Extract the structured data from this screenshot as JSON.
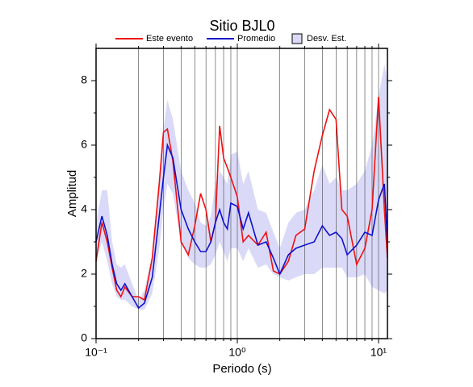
{
  "chart_data": {
    "type": "line",
    "title": "Sitio BJL0",
    "x_label": "Periodo (s)",
    "y_label": "Amplitud",
    "x_log": true,
    "xgrid": true,
    "xlim": [
      0.1,
      11.56
    ],
    "ylim": [
      0,
      9
    ],
    "xticks": [
      {
        "value": 0.1,
        "label": "10⁻¹"
      },
      {
        "value": 1,
        "label": "10⁰"
      },
      {
        "value": 10,
        "label": "10¹"
      }
    ],
    "xminorticks": [
      0.2,
      0.3,
      0.4,
      0.5,
      0.6,
      0.7,
      0.8,
      0.9,
      2,
      3,
      4,
      5,
      6,
      7,
      8,
      9
    ],
    "yticks": [
      0,
      2,
      4,
      6,
      8
    ],
    "yminorticks": [
      1,
      3,
      5,
      7
    ],
    "x": [
      0.1,
      0.11,
      0.12,
      0.13,
      0.14,
      0.15,
      0.16,
      0.18,
      0.2,
      0.22,
      0.25,
      0.28,
      0.3,
      0.32,
      0.35,
      0.4,
      0.45,
      0.5,
      0.55,
      0.6,
      0.65,
      0.7,
      0.75,
      0.8,
      0.85,
      0.9,
      1.0,
      1.1,
      1.2,
      1.4,
      1.6,
      1.8,
      2.0,
      2.3,
      2.6,
      3.0,
      3.5,
      4.0,
      4.5,
      5.0,
      5.5,
      6.0,
      7.0,
      8.0,
      9.0,
      10.0,
      11.0,
      11.56
    ],
    "series": [
      {
        "name": "Este evento",
        "color": "#ee1111",
        "values": [
          2.4,
          3.6,
          3.0,
          2.2,
          1.5,
          1.3,
          1.6,
          1.3,
          1.3,
          1.2,
          2.5,
          4.8,
          6.4,
          6.5,
          5.5,
          3.0,
          2.6,
          3.5,
          4.5,
          4.0,
          3.0,
          3.6,
          6.6,
          5.6,
          5.3,
          5.0,
          4.4,
          3.0,
          3.2,
          2.9,
          3.3,
          2.1,
          2.0,
          2.4,
          3.2,
          3.4,
          5.2,
          6.3,
          7.1,
          6.8,
          4.0,
          3.8,
          2.3,
          2.8,
          4.0,
          7.5,
          4.0,
          2.5
        ]
      },
      {
        "name": "Promedio",
        "color": "#1111cc",
        "values": [
          3.0,
          3.8,
          3.2,
          2.3,
          1.7,
          1.5,
          1.7,
          1.3,
          0.95,
          1.1,
          1.9,
          3.8,
          5.0,
          6.0,
          5.6,
          4.0,
          3.4,
          3.0,
          2.7,
          2.7,
          3.0,
          3.6,
          4.0,
          3.6,
          3.4,
          4.2,
          4.1,
          3.4,
          3.9,
          2.9,
          3.0,
          2.5,
          2.0,
          2.6,
          2.8,
          2.9,
          3.0,
          3.5,
          3.2,
          3.3,
          3.1,
          2.6,
          2.9,
          3.3,
          3.2,
          4.3,
          4.8,
          3.0
        ]
      },
      {
        "name": "Desv. Est.",
        "type": "band",
        "color": "#dadaf8",
        "lower": [
          2.4,
          3.0,
          2.4,
          1.7,
          1.3,
          1.2,
          1.2,
          1.0,
          0.9,
          0.9,
          1.4,
          2.8,
          4.0,
          4.8,
          4.5,
          3.0,
          2.5,
          2.3,
          2.2,
          2.2,
          2.3,
          2.6,
          3.0,
          2.7,
          2.4,
          2.8,
          2.8,
          2.4,
          2.8,
          2.2,
          2.3,
          2.0,
          1.9,
          1.8,
          1.9,
          2.0,
          2.0,
          2.2,
          2.2,
          2.2,
          2.2,
          1.9,
          1.9,
          2.0,
          1.6,
          1.5,
          1.4,
          1.5
        ],
        "upper": [
          3.6,
          4.6,
          4.6,
          3.0,
          2.3,
          2.2,
          2.3,
          1.7,
          1.2,
          1.5,
          2.6,
          5.0,
          6.5,
          7.4,
          6.8,
          5.2,
          4.6,
          4.2,
          3.6,
          3.5,
          3.8,
          4.8,
          5.2,
          5.0,
          4.8,
          5.7,
          5.8,
          4.8,
          5.2,
          4.0,
          3.9,
          3.3,
          2.8,
          3.6,
          3.9,
          4.0,
          4.6,
          5.4,
          4.8,
          5.0,
          4.6,
          4.6,
          4.8,
          5.2,
          6.0,
          7.5,
          8.5,
          8.0
        ]
      }
    ]
  }
}
